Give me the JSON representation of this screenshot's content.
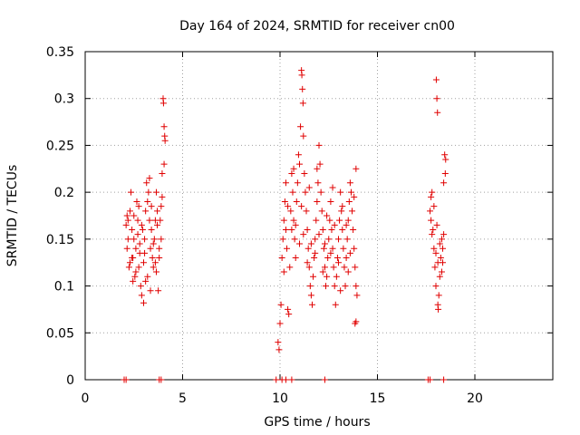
{
  "chart_data": {
    "type": "scatter",
    "title": "Day 164 of 2024, SRMTID for receiver cn00",
    "xlabel": "GPS time / hours",
    "ylabel": "SRMTID / TECUs",
    "xlim": [
      0,
      24
    ],
    "ylim": [
      0,
      0.35
    ],
    "xticks": [
      0,
      5,
      10,
      15,
      20
    ],
    "xtick_labels": [
      "0",
      "5",
      "10",
      "15",
      "20"
    ],
    "yticks": [
      0,
      0.05,
      0.1,
      0.15,
      0.2,
      0.25,
      0.3,
      0.35
    ],
    "ytick_labels": [
      "0",
      "0.05",
      "0.1",
      "0.15",
      "0.2",
      "0.25",
      "0.3",
      "0.35"
    ],
    "grid": true,
    "marker": "+",
    "series": [
      {
        "name": "SRMTID",
        "color": "#e00000",
        "points": [
          [
            2.0,
            0.0
          ],
          [
            2.1,
            0.0
          ],
          [
            3.8,
            0.0
          ],
          [
            3.9,
            0.0
          ],
          [
            9.8,
            0.0
          ],
          [
            10.1,
            0.0
          ],
          [
            10.3,
            0.0
          ],
          [
            10.6,
            0.0
          ],
          [
            12.3,
            0.0
          ],
          [
            17.6,
            0.0
          ],
          [
            17.7,
            0.0
          ],
          [
            18.4,
            0.0
          ],
          [
            2.1,
            0.165
          ],
          [
            2.15,
            0.14
          ],
          [
            2.2,
            0.17
          ],
          [
            2.25,
            0.12
          ],
          [
            2.3,
            0.18
          ],
          [
            2.35,
            0.2
          ],
          [
            2.4,
            0.16
          ],
          [
            2.45,
            0.13
          ],
          [
            2.5,
            0.15
          ],
          [
            2.55,
            0.11
          ],
          [
            2.6,
            0.14
          ],
          [
            2.65,
            0.19
          ],
          [
            2.7,
            0.17
          ],
          [
            2.75,
            0.12
          ],
          [
            2.8,
            0.135
          ],
          [
            2.85,
            0.1
          ],
          [
            2.9,
            0.09
          ],
          [
            2.95,
            0.16
          ],
          [
            3.0,
            0.082
          ],
          [
            3.05,
            0.15
          ],
          [
            3.1,
            0.18
          ],
          [
            3.15,
            0.21
          ],
          [
            3.2,
            0.19
          ],
          [
            3.25,
            0.2
          ],
          [
            3.3,
            0.17
          ],
          [
            3.35,
            0.14
          ],
          [
            3.4,
            0.16
          ],
          [
            3.45,
            0.13
          ],
          [
            3.5,
            0.12
          ],
          [
            3.55,
            0.15
          ],
          [
            3.6,
            0.17
          ],
          [
            3.65,
            0.2
          ],
          [
            3.7,
            0.18
          ],
          [
            3.75,
            0.095
          ],
          [
            3.8,
            0.13
          ],
          [
            3.85,
            0.17
          ],
          [
            3.9,
            0.15
          ],
          [
            3.95,
            0.22
          ],
          [
            4.0,
            0.3
          ],
          [
            4.02,
            0.295
          ],
          [
            4.05,
            0.27
          ],
          [
            4.08,
            0.26
          ],
          [
            4.1,
            0.255
          ],
          [
            4.05,
            0.23
          ],
          [
            2.2,
            0.15
          ],
          [
            2.4,
            0.13
          ],
          [
            2.6,
            0.115
          ],
          [
            2.8,
            0.145
          ],
          [
            3.0,
            0.125
          ],
          [
            3.2,
            0.11
          ],
          [
            3.4,
            0.185
          ],
          [
            3.6,
            0.125
          ],
          [
            3.8,
            0.14
          ],
          [
            2.3,
            0.125
          ],
          [
            2.5,
            0.175
          ],
          [
            2.7,
            0.155
          ],
          [
            2.9,
            0.165
          ],
          [
            3.1,
            0.105
          ],
          [
            3.3,
            0.215
          ],
          [
            3.5,
            0.145
          ],
          [
            3.7,
            0.165
          ],
          [
            3.9,
            0.185
          ],
          [
            2.15,
            0.175
          ],
          [
            2.45,
            0.105
          ],
          [
            2.75,
            0.185
          ],
          [
            3.05,
            0.135
          ],
          [
            3.35,
            0.095
          ],
          [
            3.65,
            0.115
          ],
          [
            3.95,
            0.195
          ],
          [
            9.9,
            0.04
          ],
          [
            9.95,
            0.032
          ],
          [
            10.0,
            0.06
          ],
          [
            10.05,
            0.08
          ],
          [
            10.1,
            0.13
          ],
          [
            10.15,
            0.15
          ],
          [
            10.2,
            0.17
          ],
          [
            10.25,
            0.19
          ],
          [
            10.3,
            0.16
          ],
          [
            10.35,
            0.14
          ],
          [
            10.4,
            0.075
          ],
          [
            10.45,
            0.07
          ],
          [
            10.5,
            0.12
          ],
          [
            10.55,
            0.18
          ],
          [
            10.6,
            0.22
          ],
          [
            10.65,
            0.2
          ],
          [
            10.7,
            0.17
          ],
          [
            10.75,
            0.15
          ],
          [
            10.8,
            0.13
          ],
          [
            10.85,
            0.19
          ],
          [
            10.9,
            0.21
          ],
          [
            10.95,
            0.24
          ],
          [
            11.0,
            0.23
          ],
          [
            11.05,
            0.27
          ],
          [
            11.1,
            0.33
          ],
          [
            11.12,
            0.325
          ],
          [
            11.15,
            0.31
          ],
          [
            11.18,
            0.295
          ],
          [
            11.2,
            0.26
          ],
          [
            11.25,
            0.22
          ],
          [
            11.3,
            0.2
          ],
          [
            11.35,
            0.18
          ],
          [
            11.4,
            0.16
          ],
          [
            11.45,
            0.14
          ],
          [
            11.5,
            0.12
          ],
          [
            11.55,
            0.1
          ],
          [
            11.6,
            0.09
          ],
          [
            11.65,
            0.08
          ],
          [
            11.7,
            0.11
          ],
          [
            11.75,
            0.13
          ],
          [
            11.8,
            0.15
          ],
          [
            11.85,
            0.17
          ],
          [
            11.9,
            0.19
          ],
          [
            11.95,
            0.21
          ],
          [
            12.0,
            0.25
          ],
          [
            12.05,
            0.23
          ],
          [
            12.1,
            0.2
          ],
          [
            12.15,
            0.18
          ],
          [
            12.2,
            0.16
          ],
          [
            12.25,
            0.14
          ],
          [
            12.3,
            0.12
          ],
          [
            12.35,
            0.1
          ],
          [
            12.4,
            0.11
          ],
          [
            12.45,
            0.13
          ],
          [
            12.5,
            0.15
          ],
          [
            12.55,
            0.17
          ],
          [
            12.6,
            0.19
          ],
          [
            12.65,
            0.16
          ],
          [
            12.7,
            0.14
          ],
          [
            12.75,
            0.12
          ],
          [
            12.8,
            0.1
          ],
          [
            12.85,
            0.08
          ],
          [
            12.9,
            0.11
          ],
          [
            12.95,
            0.13
          ],
          [
            13.0,
            0.15
          ],
          [
            13.05,
            0.17
          ],
          [
            13.1,
            0.2
          ],
          [
            13.15,
            0.18
          ],
          [
            13.2,
            0.16
          ],
          [
            13.25,
            0.14
          ],
          [
            13.3,
            0.12
          ],
          [
            13.35,
            0.1
          ],
          [
            13.4,
            0.13
          ],
          [
            13.45,
            0.15
          ],
          [
            13.5,
            0.17
          ],
          [
            13.55,
            0.19
          ],
          [
            13.6,
            0.21
          ],
          [
            13.65,
            0.2
          ],
          [
            13.7,
            0.18
          ],
          [
            13.75,
            0.16
          ],
          [
            13.8,
            0.14
          ],
          [
            13.85,
            0.12
          ],
          [
            13.9,
            0.1
          ],
          [
            13.95,
            0.09
          ],
          [
            13.9,
            0.062
          ],
          [
            13.85,
            0.06
          ],
          [
            10.2,
            0.115
          ],
          [
            10.6,
            0.16
          ],
          [
            11.0,
            0.145
          ],
          [
            11.4,
            0.125
          ],
          [
            11.8,
            0.135
          ],
          [
            12.2,
            0.115
          ],
          [
            12.6,
            0.135
          ],
          [
            13.0,
            0.125
          ],
          [
            13.4,
            0.165
          ],
          [
            13.8,
            0.195
          ],
          [
            10.4,
            0.185
          ],
          [
            10.8,
            0.165
          ],
          [
            11.2,
            0.155
          ],
          [
            11.6,
            0.145
          ],
          [
            12.0,
            0.155
          ],
          [
            12.4,
            0.175
          ],
          [
            12.8,
            0.165
          ],
          [
            13.2,
            0.185
          ],
          [
            13.6,
            0.135
          ],
          [
            10.3,
            0.21
          ],
          [
            10.7,
            0.225
          ],
          [
            11.1,
            0.185
          ],
          [
            11.5,
            0.205
          ],
          [
            11.9,
            0.225
          ],
          [
            12.3,
            0.145
          ],
          [
            12.7,
            0.205
          ],
          [
            13.1,
            0.095
          ],
          [
            13.5,
            0.115
          ],
          [
            13.9,
            0.225
          ],
          [
            17.7,
            0.18
          ],
          [
            17.75,
            0.17
          ],
          [
            17.8,
            0.2
          ],
          [
            17.85,
            0.16
          ],
          [
            17.9,
            0.14
          ],
          [
            17.95,
            0.12
          ],
          [
            18.0,
            0.1
          ],
          [
            18.02,
            0.32
          ],
          [
            18.05,
            0.3
          ],
          [
            18.08,
            0.285
          ],
          [
            18.1,
            0.08
          ],
          [
            18.12,
            0.075
          ],
          [
            18.15,
            0.09
          ],
          [
            18.2,
            0.11
          ],
          [
            18.25,
            0.13
          ],
          [
            18.3,
            0.15
          ],
          [
            18.35,
            0.14
          ],
          [
            18.4,
            0.21
          ],
          [
            18.45,
            0.24
          ],
          [
            18.5,
            0.235
          ],
          [
            18.48,
            0.22
          ],
          [
            17.8,
            0.155
          ],
          [
            17.9,
            0.185
          ],
          [
            18.0,
            0.135
          ],
          [
            18.1,
            0.125
          ],
          [
            18.2,
            0.145
          ],
          [
            18.3,
            0.115
          ],
          [
            18.4,
            0.155
          ],
          [
            17.75,
            0.195
          ],
          [
            18.05,
            0.165
          ],
          [
            18.35,
            0.125
          ]
        ]
      }
    ]
  }
}
